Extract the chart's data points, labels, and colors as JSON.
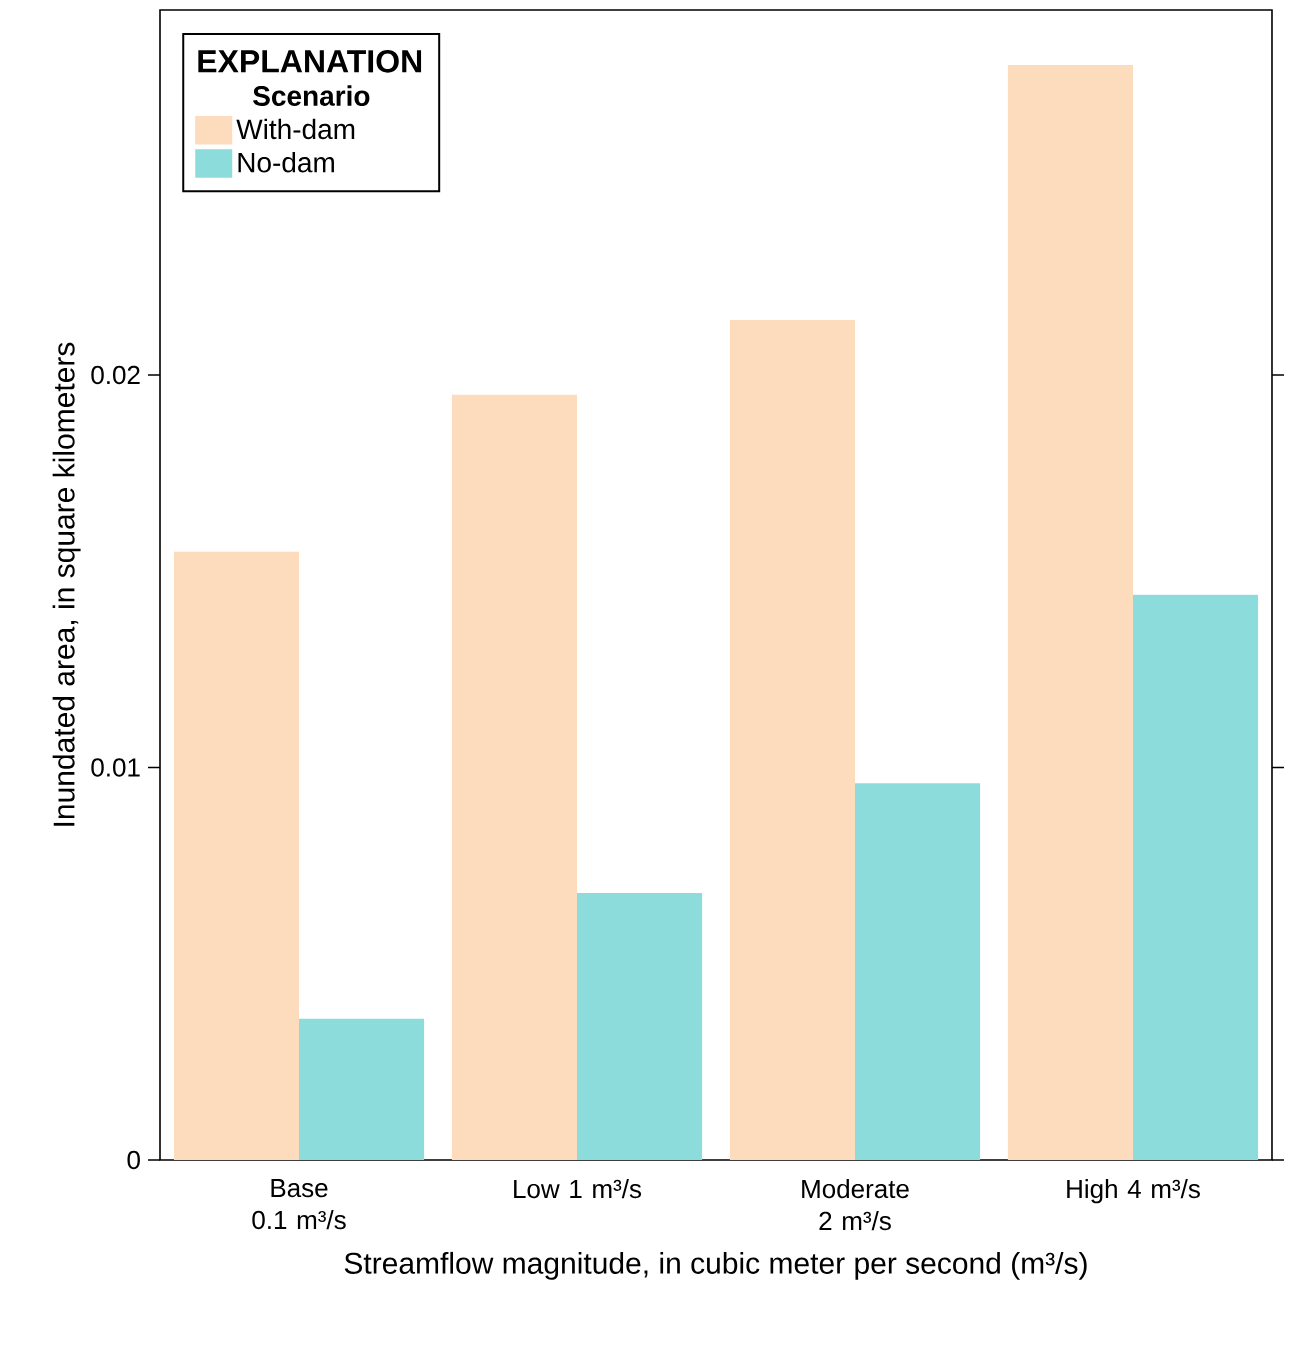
{
  "chart_data": {
    "type": "bar",
    "categories": [
      "Base 0.1 m³/s",
      "Low 1 m³/s",
      "Moderate 2 m³/s",
      "High 4 m³/s"
    ],
    "series": [
      {
        "name": "With-dam",
        "color": "#fcdcbc",
        "values": [
          0.0155,
          0.0195,
          0.0214,
          0.0279
        ]
      },
      {
        "name": "No-dam",
        "color": "#8ddcdc",
        "values": [
          0.0036,
          0.0068,
          0.0096,
          0.0144
        ]
      }
    ],
    "xlabel": "Streamflow magnitude, in cubic meter per second (m³/s)",
    "ylabel": "Inundated area, in square kilometers",
    "legend_title": "EXPLANATION",
    "annotations": [
      "Scenario"
    ],
    "ylim": [
      0,
      0.0293
    ],
    "yticks": [
      0,
      0.01,
      0.02
    ],
    "legend": "top left",
    "grid": false
  }
}
